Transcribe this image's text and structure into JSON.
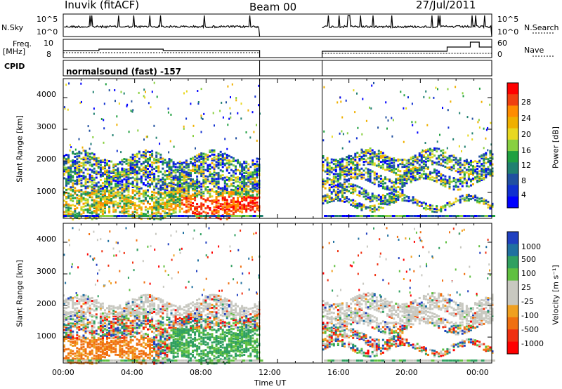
{
  "header": {
    "station": "Inuvik (fitACF)",
    "beam": "Beam 00",
    "date": "27/Jul/2011"
  },
  "top_panels": {
    "nsky_label": "N.Sky",
    "nsky_ticks": [
      "10^5",
      "10^0"
    ],
    "nsearch_label": "N.Search",
    "nsearch_ticks": [
      "10^5",
      "10^0"
    ],
    "freq_label_1": "Freq.",
    "freq_label_2": "[MHz]",
    "freq_ticks": [
      "10",
      "8"
    ],
    "nave_label": "Nave",
    "nave_ticks": [
      "60",
      "0"
    ],
    "cpid_label": "CPID",
    "cpid_value": "normalsound (fast) -157"
  },
  "chart_data": [
    {
      "type": "heatmap",
      "panel": "power",
      "ylabel": "Slant Range [km]",
      "yticks": [
        "4000",
        "3000",
        "2000",
        "1000"
      ],
      "ylim": [
        180,
        4600
      ],
      "colorbar_label": "Power [dB]",
      "colorbar_ticks": [
        "28",
        "24",
        "20",
        "16",
        "12",
        "8",
        "4"
      ],
      "colorbar_colors": [
        "#ff0000",
        "#f04010",
        "#ff8c00",
        "#f0b000",
        "#e8d820",
        "#88d040",
        "#20a040",
        "#208070",
        "#2050a0",
        "#1030d0",
        "#0000ff"
      ]
    },
    {
      "type": "heatmap",
      "panel": "velocity",
      "ylabel": "Slant Range [km]",
      "yticks": [
        "4000",
        "3000",
        "2000",
        "1000"
      ],
      "ylim": [
        180,
        4600
      ],
      "colorbar_label": "Velocity [m s⁻¹]",
      "colorbar_ticks": [
        "1000",
        "500",
        "100",
        "25",
        "-25",
        "-100",
        "-500",
        "-1000"
      ],
      "colorbar_colors": [
        "#2040c0",
        "#2070a0",
        "#30a060",
        "#60c040",
        "#c8c8c0",
        "#c8c8c0",
        "#f0a020",
        "#f07010",
        "#f03010",
        "#ff0000"
      ]
    }
  ],
  "xaxis": {
    "ticks": [
      "00:00",
      "04:00",
      "08:00",
      "12:00",
      "16:00",
      "20:00",
      "00:00"
    ],
    "label": "Time UT"
  }
}
